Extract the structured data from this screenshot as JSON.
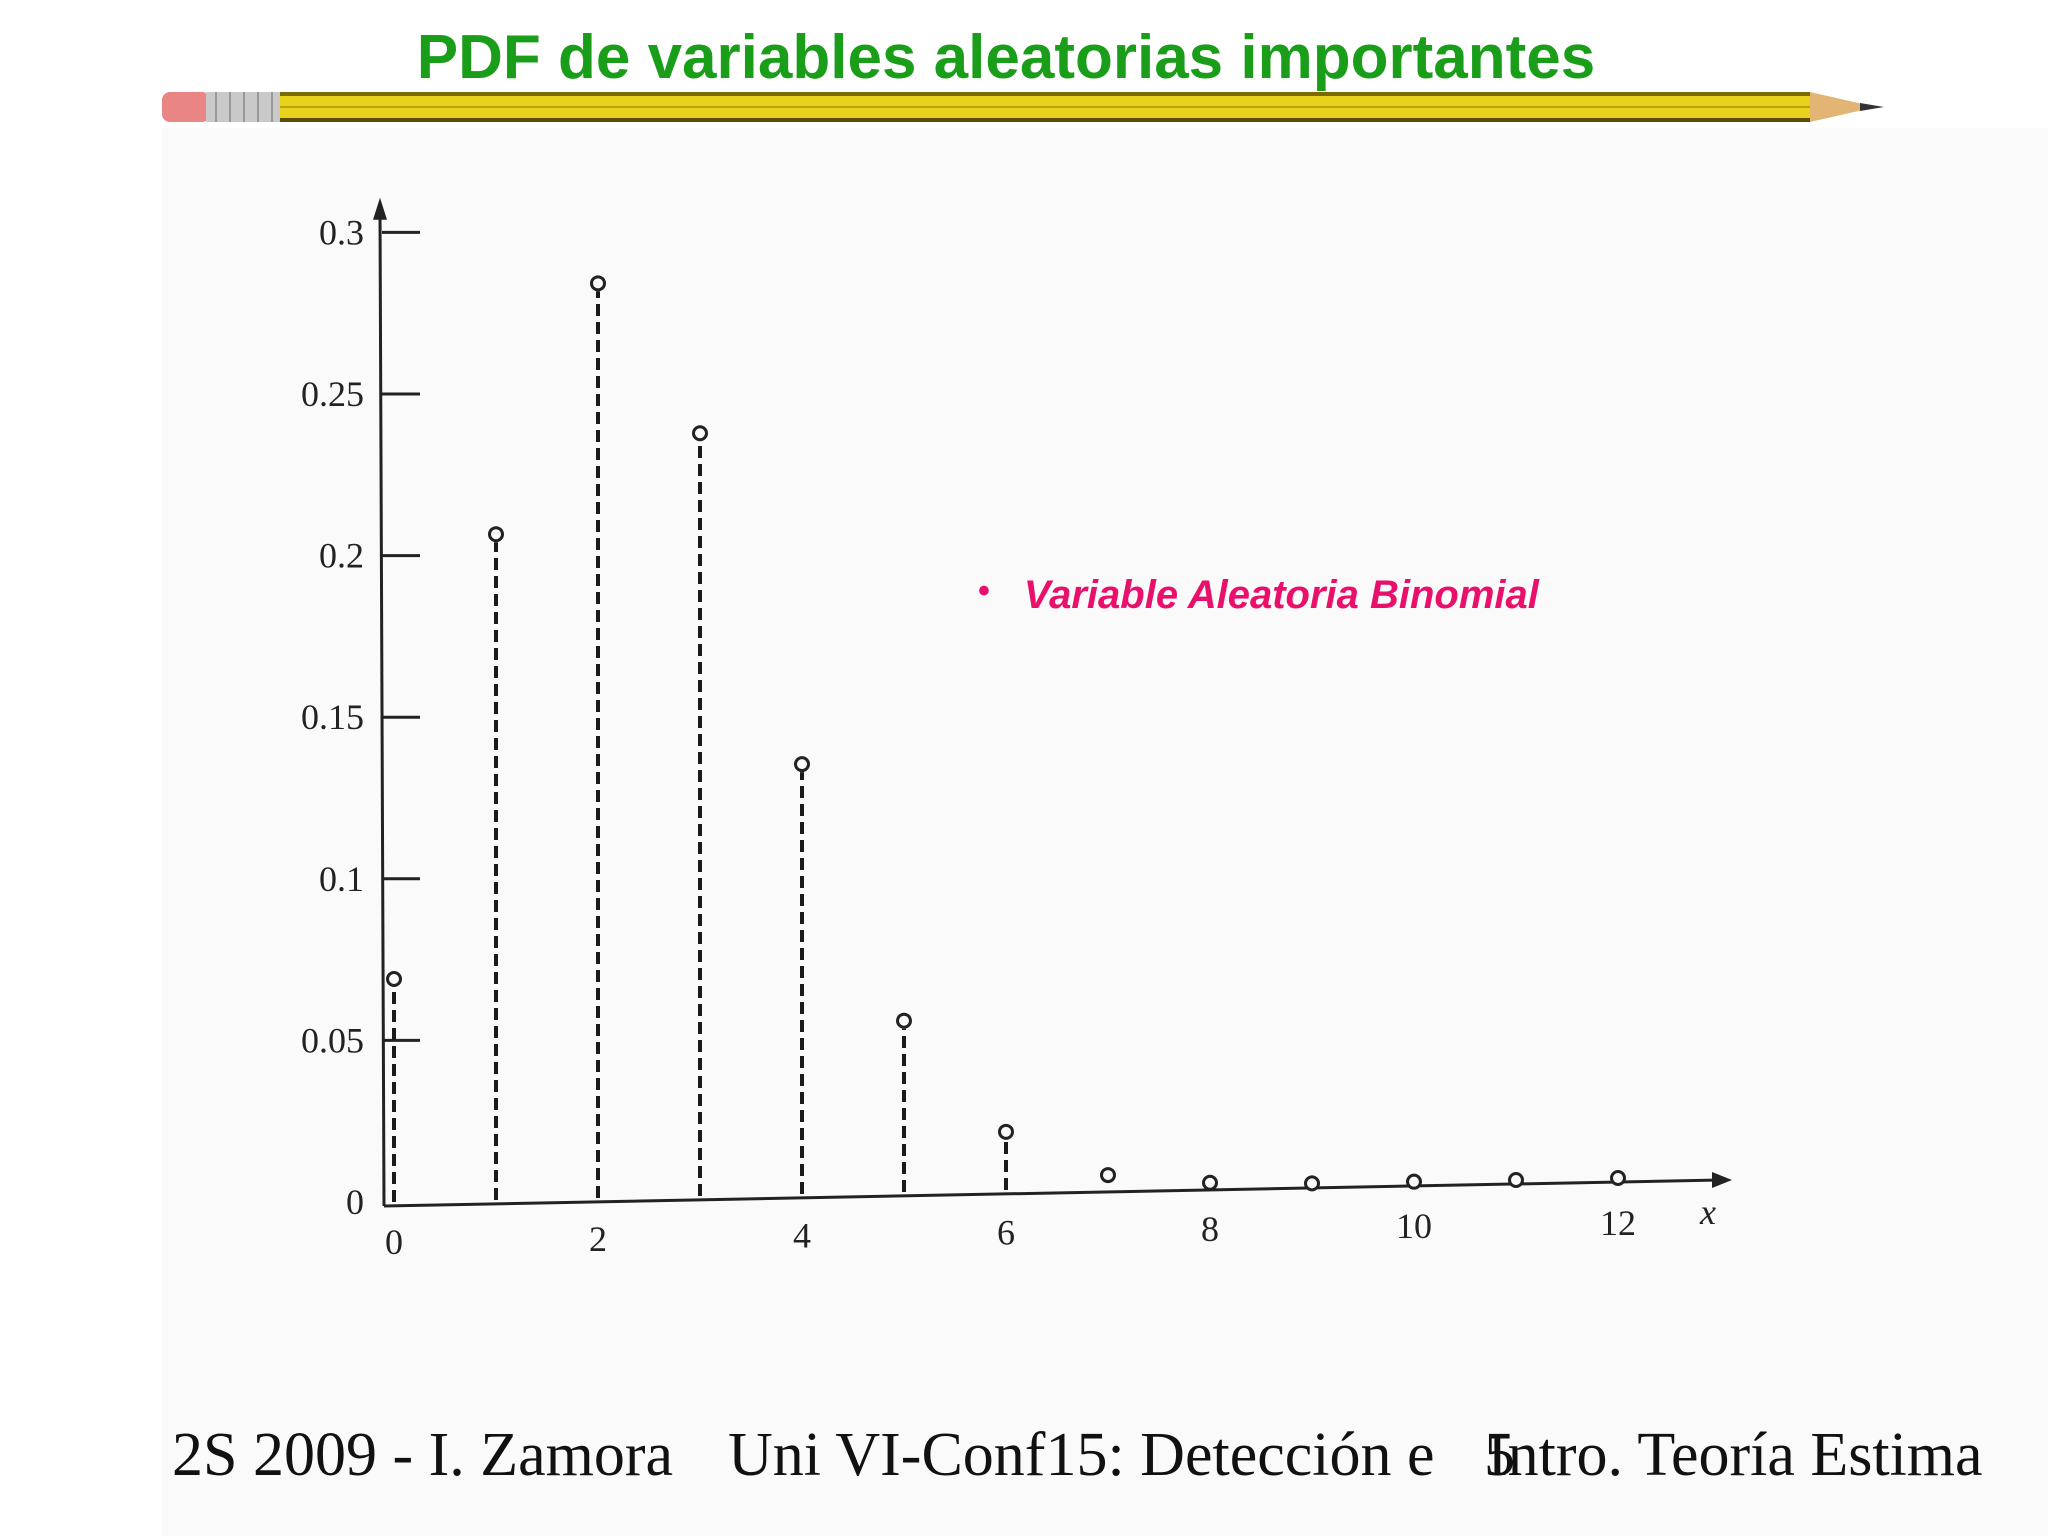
{
  "slide": {
    "title": "PDF de variables aleatorias importantes",
    "bullet": "Variable Aleatoria Binomial",
    "footer_left": "2S 2009 - I. Zamora",
    "footer_center": "Uni VI-Conf15: Detección e",
    "footer_right": "Intro. Teoría Estima",
    "page_number": "5",
    "colors": {
      "title": "#1a9e1a",
      "bullet": "#e8106a",
      "pencil_body": "#e8d21c"
    }
  },
  "chart_data": {
    "type": "stem",
    "x": [
      0,
      1,
      2,
      3,
      4,
      5,
      6,
      7,
      8,
      9,
      10,
      11,
      12
    ],
    "values": [
      0.069,
      0.206,
      0.283,
      0.236,
      0.133,
      0.053,
      0.018,
      0.004,
      0.001,
      0.0002,
      0.0001,
      0.0,
      0.0
    ],
    "xlabel": "x",
    "xticks": [
      "0",
      "2",
      "4",
      "6",
      "8",
      "10",
      "12"
    ],
    "yticks": [
      "0",
      "0.05",
      "0.1",
      "0.15",
      "0.2",
      "0.25",
      "0.3"
    ],
    "xlim": [
      0,
      13
    ],
    "ylim": [
      0,
      0.32
    ],
    "grid": false
  }
}
